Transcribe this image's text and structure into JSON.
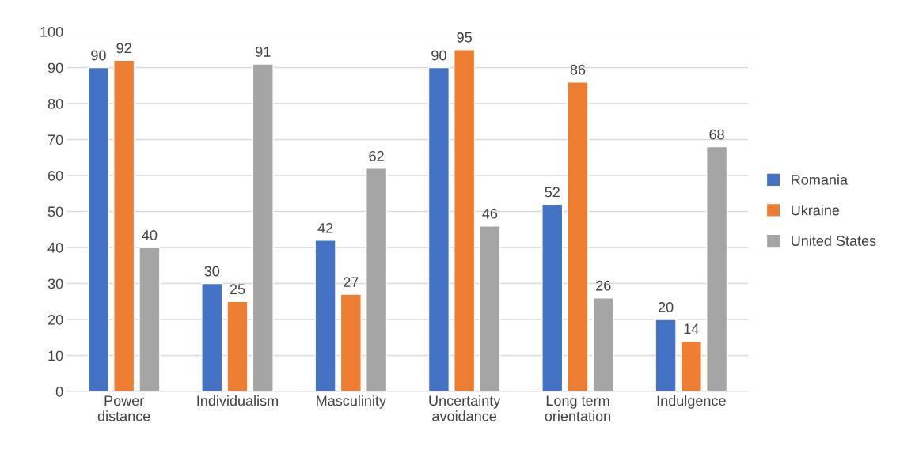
{
  "chart_data": {
    "type": "bar",
    "categories": [
      "Power\ndistance",
      "Individualism",
      "Masculinity",
      "Uncertainty\navoidance",
      "Long term\norientation",
      "Indulgence"
    ],
    "series": [
      {
        "name": "Romania",
        "color": "#4472c4",
        "values": [
          90,
          30,
          42,
          90,
          52,
          20
        ]
      },
      {
        "name": "Ukraine",
        "color": "#ed7d31",
        "values": [
          92,
          25,
          27,
          95,
          86,
          14
        ]
      },
      {
        "name": "United States",
        "color": "#a5a5a5",
        "values": [
          40,
          91,
          62,
          46,
          26,
          68
        ]
      }
    ],
    "ylim": [
      0,
      100
    ],
    "yticks": [
      0,
      10,
      20,
      30,
      40,
      50,
      60,
      70,
      80,
      90,
      100
    ],
    "grid": "y",
    "legend": "right",
    "data_labels": true
  }
}
